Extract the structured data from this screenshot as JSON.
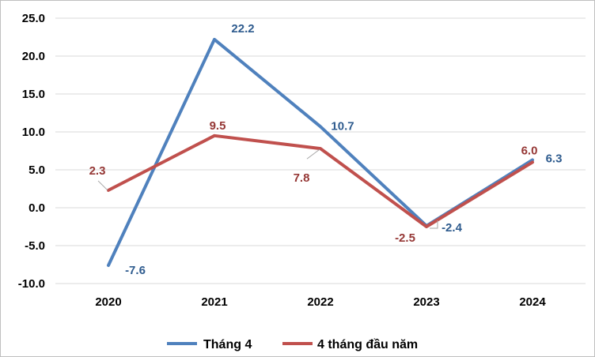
{
  "chart_data": {
    "type": "line",
    "categories": [
      "2020",
      "2021",
      "2022",
      "2023",
      "2024"
    ],
    "ylim": [
      -10,
      25
    ],
    "yticks": [
      "25.0",
      "20.0",
      "15.0",
      "10.0",
      "5.0",
      "0.0",
      "-5.0",
      "-10.0"
    ],
    "ytick_values": [
      25,
      20,
      15,
      10,
      5,
      0,
      -5,
      -10
    ],
    "grid": true,
    "legend_position": "bottom",
    "series": [
      {
        "name": "Tháng 4",
        "color": "#4f81bd",
        "values": [
          -7.6,
          22.2,
          10.7,
          -2.4,
          6.3
        ],
        "labels": [
          "-7.6",
          "22.2",
          "10.7",
          "-2.4",
          "6.3"
        ]
      },
      {
        "name": "4 tháng đầu năm",
        "color": "#c0504d",
        "values": [
          2.3,
          9.5,
          7.8,
          -2.5,
          6.0
        ],
        "labels": [
          "2.3",
          "9.5",
          "7.8",
          "-2.5",
          "6.0"
        ]
      }
    ]
  }
}
